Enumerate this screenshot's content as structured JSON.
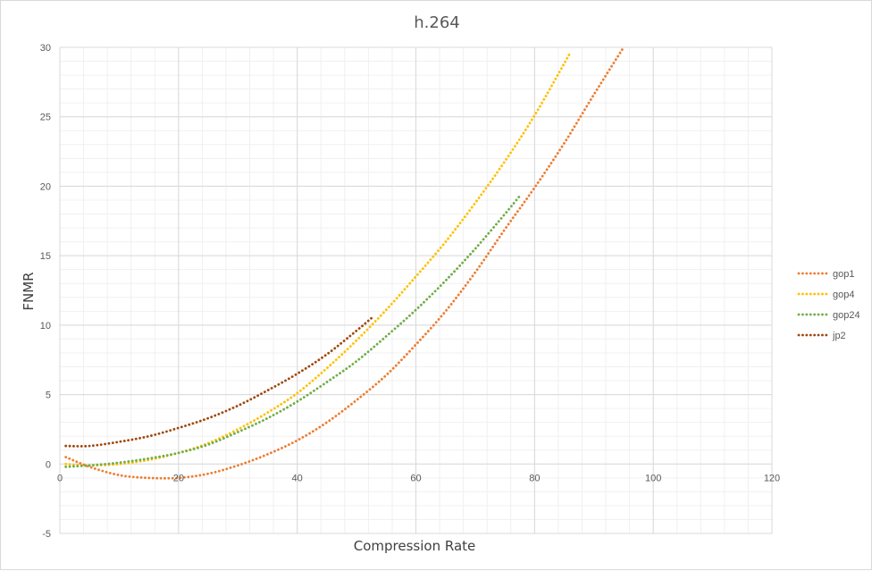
{
  "chart_data": {
    "type": "line",
    "title": "h.264",
    "xlabel": "Compression Rate",
    "ylabel": "FNMR",
    "xlim": [
      0,
      120
    ],
    "ylim": [
      -5,
      30
    ],
    "xticks": [
      0,
      20,
      40,
      60,
      80,
      100,
      120
    ],
    "yticks": [
      -5,
      0,
      5,
      10,
      15,
      20,
      25,
      30
    ],
    "grid": true,
    "legend_position": "right",
    "series": [
      {
        "name": "gop1",
        "color": "#ED7D31",
        "x": [
          1,
          5,
          10,
          15,
          20,
          25,
          30,
          35,
          40,
          45,
          50,
          55,
          60,
          65,
          70,
          75,
          80,
          85,
          90,
          95
        ],
        "y": [
          0.5,
          -0.2,
          -0.8,
          -1.0,
          -1.0,
          -0.7,
          -0.1,
          0.7,
          1.7,
          3.0,
          4.6,
          6.4,
          8.6,
          11.0,
          13.8,
          16.9,
          19.9,
          23.1,
          26.6,
          30.0
        ]
      },
      {
        "name": "gop4",
        "color": "#FFC000",
        "x": [
          1,
          5,
          10,
          15,
          20,
          25,
          30,
          35,
          40,
          45,
          50,
          55,
          60,
          65,
          70,
          75,
          80,
          86
        ],
        "y": [
          0.0,
          -0.1,
          0.0,
          0.3,
          0.8,
          1.5,
          2.5,
          3.7,
          5.1,
          6.9,
          8.9,
          11.1,
          13.5,
          16.0,
          18.8,
          21.8,
          25.1,
          29.6
        ]
      },
      {
        "name": "gop24",
        "color": "#70AD47",
        "x": [
          1,
          5,
          10,
          15,
          20,
          25,
          30,
          35,
          40,
          45,
          50,
          55,
          60,
          65,
          70,
          75,
          77.5
        ],
        "y": [
          -0.2,
          -0.1,
          0.1,
          0.4,
          0.8,
          1.4,
          2.3,
          3.3,
          4.5,
          5.9,
          7.4,
          9.2,
          11.1,
          13.2,
          15.5,
          18.0,
          19.3
        ]
      },
      {
        "name": "jp2",
        "color": "#A0470D",
        "x": [
          1,
          5,
          10,
          15,
          20,
          25,
          30,
          35,
          40,
          45,
          50,
          52.5
        ],
        "y": [
          1.3,
          1.3,
          1.6,
          2.0,
          2.6,
          3.3,
          4.2,
          5.3,
          6.5,
          7.9,
          9.6,
          10.5
        ]
      }
    ]
  }
}
